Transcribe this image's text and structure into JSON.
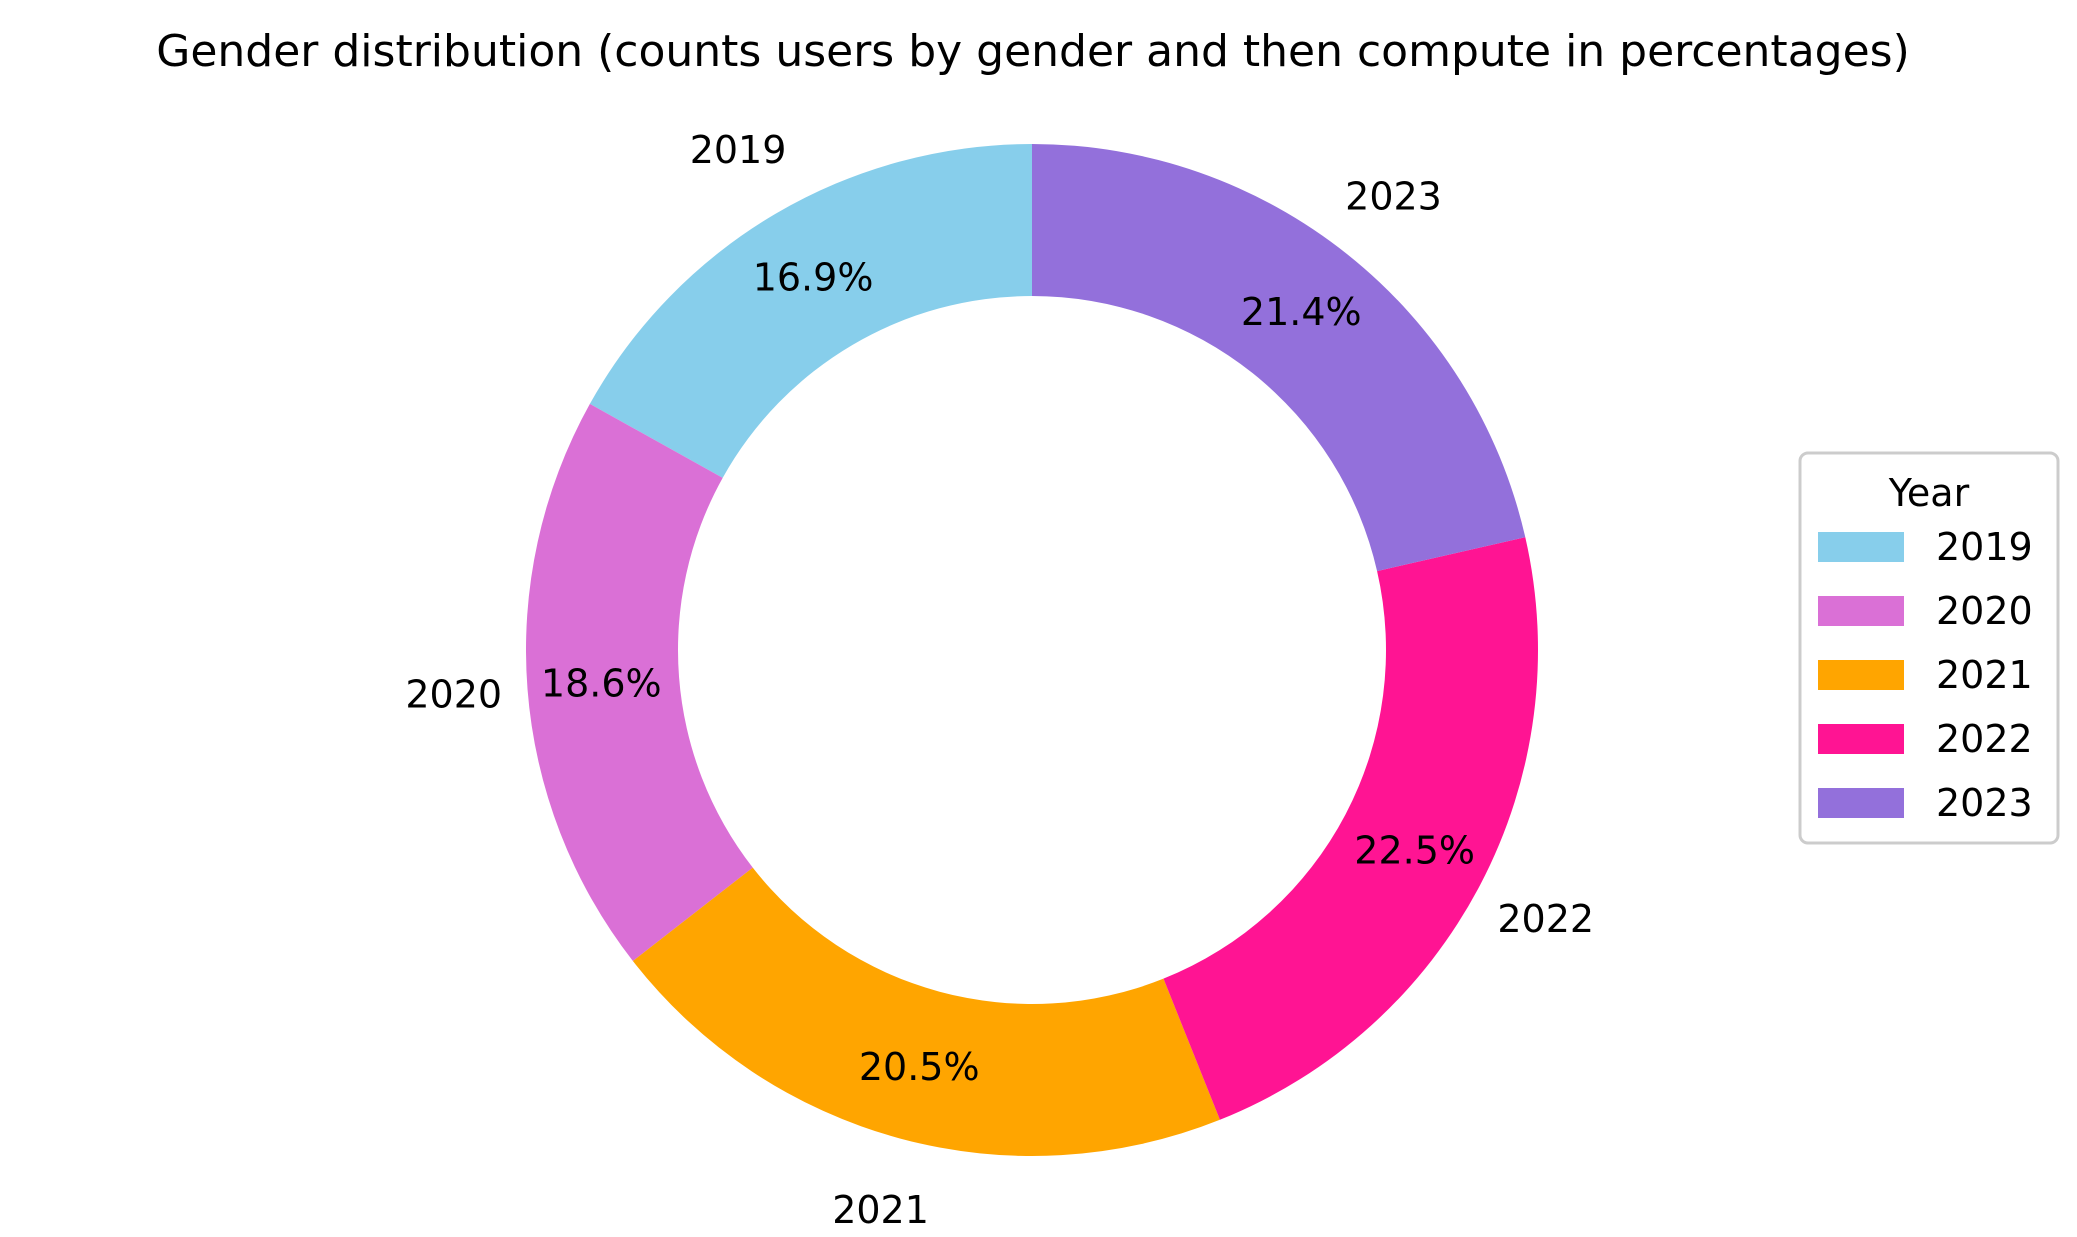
{
  "chart_data": {
    "type": "pie",
    "variant": "donut",
    "title": "Gender distribution (counts users by gender and then compute in percentages)",
    "categories": [
      "2019",
      "2020",
      "2021",
      "2022",
      "2023"
    ],
    "values": [
      16.9,
      18.6,
      20.5,
      22.5,
      21.4
    ],
    "value_labels": [
      "16.9%",
      "18.6%",
      "20.5%",
      "22.5%",
      "21.4%"
    ],
    "colors": [
      "#87ceeb",
      "#da70d6",
      "#ffa500",
      "#ff1493",
      "#9370db"
    ],
    "start_angle_deg": 90,
    "direction": "counterclockwise",
    "legend": {
      "title": "Year",
      "placement": "center-right"
    }
  }
}
